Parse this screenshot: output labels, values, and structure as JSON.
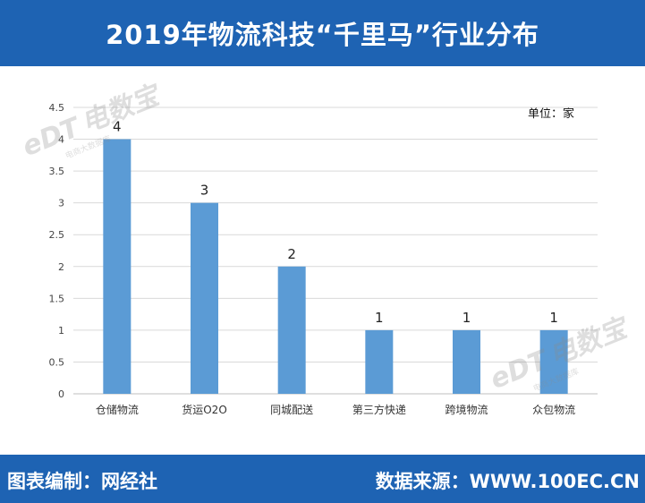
{
  "header": {
    "title": "2019年物流科技“千里马”行业分布"
  },
  "footer": {
    "left": "图表编制：网经社",
    "right": "数据来源：WWW.100EC.CN"
  },
  "watermark": {
    "brand": "电数宝",
    "logo": "eDT",
    "sub": "电商大数据库"
  },
  "chart_data": {
    "type": "bar",
    "unit_label": "单位：家",
    "categories": [
      "仓储物流",
      "货运O2O",
      "同城配送",
      "第三方快递",
      "跨境物流",
      "众包物流"
    ],
    "values": [
      4,
      3,
      2,
      1,
      1,
      1
    ],
    "data_labels": [
      "4",
      "3",
      "2",
      "1",
      "1",
      "1"
    ],
    "ylim": [
      0,
      4.5
    ],
    "yticks": [
      0,
      0.5,
      1,
      1.5,
      2,
      2.5,
      3,
      3.5,
      4,
      4.5
    ],
    "ytick_labels": [
      "0",
      "0.5",
      "1",
      "1.5",
      "2",
      "2.5",
      "3",
      "3.5",
      "4",
      "4.5"
    ],
    "grid": true,
    "bar_color": "#5b9bd5"
  }
}
